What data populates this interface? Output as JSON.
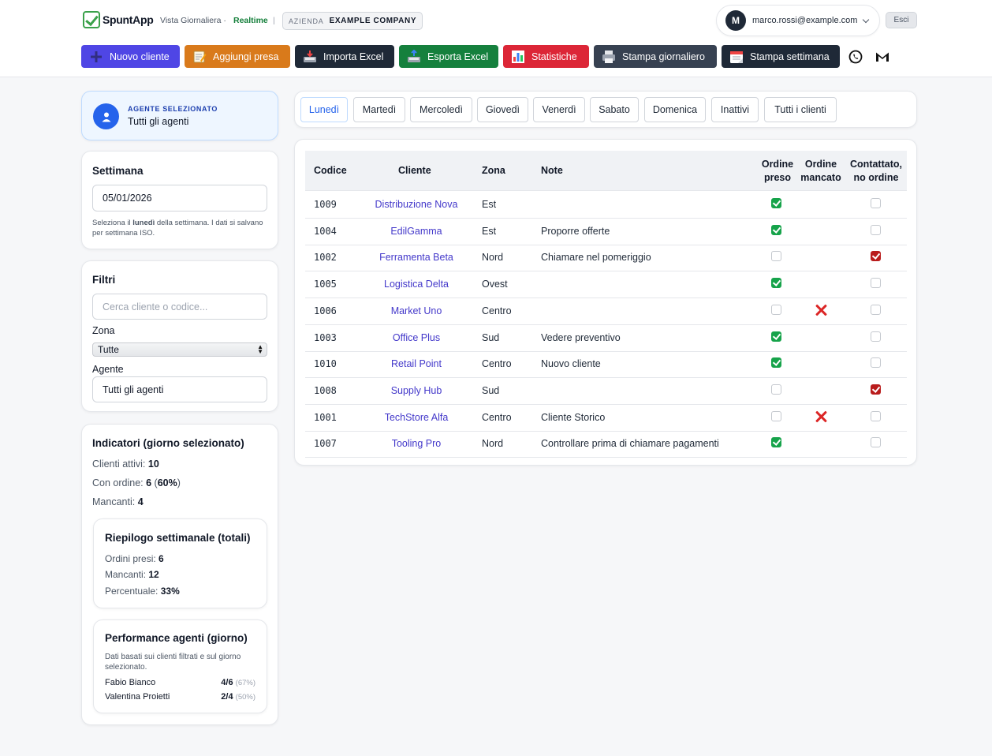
{
  "header": {
    "app_name": "SpuntApp",
    "view_label": "Vista Giornaliera ·",
    "realtime": "Realtime",
    "separator": "|",
    "company_label": "AZIENDA",
    "company_name": "EXAMPLE COMPANY",
    "user_initial": "M",
    "user_email": "marco.rossi@example.com",
    "logout_label": "Esci"
  },
  "toolbar": {
    "new_client": "Nuovo cliente",
    "add_order": "Aggiungi presa",
    "import_excel": "Importa Excel",
    "export_excel": "Esporta Excel",
    "stats": "Statistiche",
    "print_day": "Stampa giornaliero",
    "print_week": "Stampa settimana",
    "colors": {
      "new_client": "#4f46e5",
      "add_order": "#d97a1b",
      "import_excel": "#1f2937",
      "export_excel": "#15803d",
      "stats": "#dc2637",
      "print_day": "#374151",
      "print_week": "#1f2937"
    }
  },
  "agent": {
    "label": "AGENTE SELEZIONATO",
    "value": "Tutti gli agenti"
  },
  "week": {
    "title": "Settimana",
    "date": "05/01/2026",
    "hint_pre": "Seleziona il",
    "hint_bold": "lunedì",
    "hint_post": "della settimana. I dati si salvano per settimana ISO."
  },
  "filters": {
    "title": "Filtri",
    "search_placeholder": "Cerca cliente o codice...",
    "zone_label": "Zona",
    "zone_value": "Tutte",
    "agent_label": "Agente",
    "agent_value": "Tutti gli agenti"
  },
  "kpi": {
    "title": "Indicatori (giorno selezionato)",
    "active_label": "Clienti attivi:",
    "active_value": "10",
    "with_order_label": "Con ordine:",
    "with_order_value": "6",
    "with_order_pct_open": "(",
    "with_order_pct": "60%",
    "with_order_pct_close": ")",
    "missing_label": "Mancanti:",
    "missing_value": "4"
  },
  "weekly": {
    "title": "Riepilogo settimanale (totali)",
    "orders_label": "Ordini presi:",
    "orders_value": "6",
    "missing_label": "Mancanti:",
    "missing_value": "12",
    "pct_label": "Percentuale:",
    "pct_value": "33%"
  },
  "performance": {
    "title": "Performance agenti (giorno)",
    "note": "Dati basati sui clienti filtrati e sul giorno selezionato.",
    "agents": [
      {
        "name": "Fabio Bianco",
        "value": "4/6",
        "pct": "(67%)"
      },
      {
        "name": "Valentina Proietti",
        "value": "2/4",
        "pct": "(50%)"
      }
    ]
  },
  "tabs": [
    "Lunedì",
    "Martedì",
    "Mercoledì",
    "Giovedì",
    "Venerdì",
    "Sabato",
    "Domenica",
    "Inattivi",
    "Tutti i clienti"
  ],
  "table": {
    "headers": {
      "code": "Codice",
      "client": "Cliente",
      "zone": "Zona",
      "note": "Note",
      "ordered_1": "Ordine",
      "ordered_2": "preso",
      "missed_1": "Ordine",
      "missed_2": "mancato",
      "contacted_1": "Contattato,",
      "contacted_2": "no ordine"
    },
    "rows": [
      {
        "code": "1009",
        "client": "Distribuzione Nova",
        "zone": "Est",
        "note": "",
        "ordered": true,
        "missed": false,
        "contacted": false
      },
      {
        "code": "1004",
        "client": "EdilGamma",
        "zone": "Est",
        "note": "Proporre offerte",
        "ordered": true,
        "missed": false,
        "contacted": false
      },
      {
        "code": "1002",
        "client": "Ferramenta Beta",
        "zone": "Nord",
        "note": "Chiamare nel pomeriggio",
        "ordered": false,
        "missed": false,
        "contacted": true
      },
      {
        "code": "1005",
        "client": "Logistica Delta",
        "zone": "Ovest",
        "note": "",
        "ordered": true,
        "missed": false,
        "contacted": false
      },
      {
        "code": "1006",
        "client": "Market Uno",
        "zone": "Centro",
        "note": "",
        "ordered": false,
        "missed": true,
        "contacted": false
      },
      {
        "code": "1003",
        "client": "Office Plus",
        "zone": "Sud",
        "note": "Vedere preventivo",
        "ordered": true,
        "missed": false,
        "contacted": false
      },
      {
        "code": "1010",
        "client": "Retail Point",
        "zone": "Centro",
        "note": "Nuovo cliente",
        "ordered": true,
        "missed": false,
        "contacted": false
      },
      {
        "code": "1008",
        "client": "Supply Hub",
        "zone": "Sud",
        "note": "",
        "ordered": false,
        "missed": false,
        "contacted": true
      },
      {
        "code": "1001",
        "client": "TechStore Alfa",
        "zone": "Centro",
        "note": "Cliente Storico",
        "ordered": false,
        "missed": true,
        "contacted": false
      },
      {
        "code": "1007",
        "client": "Tooling Pro",
        "zone": "Nord",
        "note": "Controllare prima di chiamare pagamenti",
        "ordered": true,
        "missed": false,
        "contacted": false
      }
    ]
  }
}
